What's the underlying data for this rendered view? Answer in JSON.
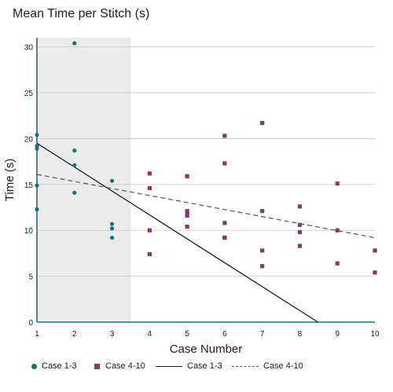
{
  "chart_data": {
    "type": "scatter",
    "title": "Mean Time per Stitch (s)",
    "xlabel": "Case Number",
    "ylabel": "Time (s)",
    "xlim": [
      1,
      10
    ],
    "ylim": [
      0,
      31
    ],
    "x_ticks": [
      "1",
      "2",
      "3",
      "4",
      "5",
      "6",
      "7",
      "8",
      "9",
      "10"
    ],
    "y_ticks": [
      "0",
      "5",
      "10",
      "15",
      "20",
      "25",
      "30"
    ],
    "grid": "horizontal",
    "shaded_region": {
      "x_start": 1,
      "x_end": 3.5
    },
    "legend_position": "bottom",
    "colors": {
      "case_1_3": "#1f6e78",
      "case_4_10": "#7d3c6b",
      "fit_solid": "#222222",
      "fit_dashed": "#555555",
      "shade": "#ebebeb"
    },
    "series": [
      {
        "name": "Case 1-3",
        "kind": "points",
        "marker": "circle",
        "x": [
          1,
          1,
          1,
          1,
          1,
          2,
          2,
          2,
          2,
          3,
          3,
          3,
          3
        ],
        "y": [
          20.4,
          19.2,
          18.9,
          14.9,
          12.3,
          30.4,
          18.7,
          17.1,
          14.1,
          15.4,
          10.7,
          10.2,
          9.2
        ]
      },
      {
        "name": "Case 4-10",
        "kind": "points",
        "marker": "square",
        "x": [
          4,
          4,
          4,
          4,
          5,
          5,
          5,
          5,
          5,
          6,
          6,
          6,
          6,
          6,
          7,
          7,
          7,
          7,
          8,
          8,
          8,
          8,
          9,
          9,
          9,
          10,
          10
        ],
        "y": [
          16.2,
          14.6,
          10.0,
          7.4,
          15.9,
          12.1,
          11.9,
          11.6,
          10.4,
          20.3,
          17.3,
          10.8,
          9.2,
          9.2,
          21.7,
          12.1,
          7.8,
          6.1,
          12.6,
          10.6,
          9.8,
          8.3,
          15.1,
          10.0,
          6.4,
          7.8,
          5.4
        ]
      },
      {
        "name": "Case 1-3",
        "kind": "line",
        "style": "solid",
        "x": [
          1,
          8.48
        ],
        "y": [
          19.5,
          0
        ]
      },
      {
        "name": "Case 4-10",
        "kind": "line",
        "style": "dashed",
        "x": [
          1,
          10
        ],
        "y": [
          16.1,
          9.2
        ]
      }
    ]
  }
}
